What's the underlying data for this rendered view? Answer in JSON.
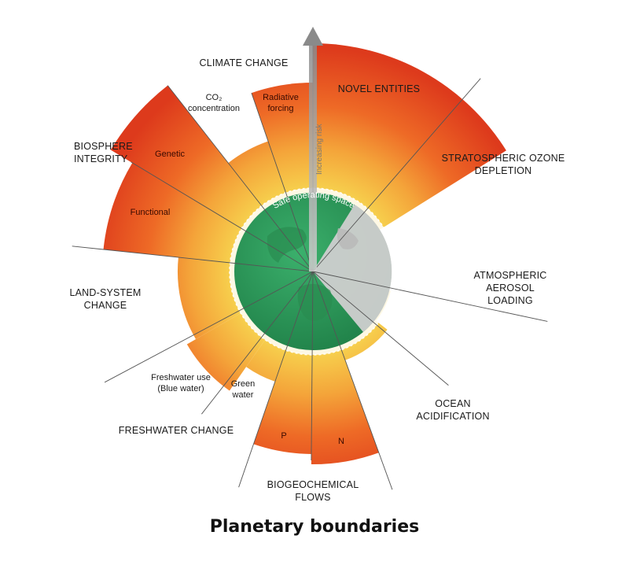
{
  "title": "Planetary boundaries",
  "arrow_label": "Increasing risk",
  "safe_label": "Safe operating space",
  "colors": {
    "safe_green": "#2e9a5c",
    "land_grey": "#c9c9c9",
    "zone_yellow": "#f6c24a",
    "zone_orange": "#f08a2a",
    "zone_red": "#d8321e"
  },
  "categories": {
    "climate": "CLIMATE CHANGE",
    "novel": "NOVEL ENTITIES",
    "ozone": [
      "STRATOSPHERIC OZONE",
      "DEPLETION"
    ],
    "aerosol": [
      "ATMOSPHERIC",
      "AEROSOL",
      "LOADING"
    ],
    "ocean": [
      "OCEAN",
      "ACIDIFICATION"
    ],
    "biogeo": [
      "BIOGEOCHEMICAL",
      "FLOWS"
    ],
    "freshwater": "FRESHWATER CHANGE",
    "land": [
      "LAND-SYSTEM",
      "CHANGE"
    ],
    "biosphere": [
      "BIOSPHERE",
      "INTEGRITY"
    ]
  },
  "sublabels": {
    "co2": [
      "CO₂",
      "concentration"
    ],
    "radiative": [
      "Radiative",
      "forcing"
    ],
    "genetic": "Genetic",
    "functional": "Functional",
    "blue_water": [
      "Freshwater use",
      "(Blue water)"
    ],
    "green_water": [
      "Green",
      "water"
    ],
    "p": "P",
    "n": "N"
  }
}
